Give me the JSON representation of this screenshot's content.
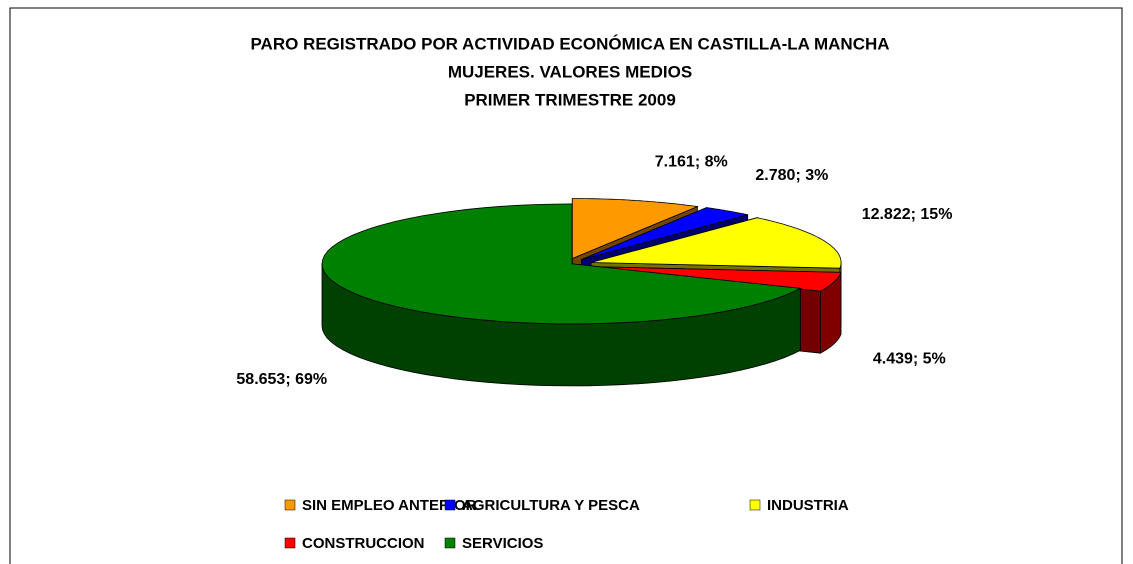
{
  "chart_data": {
    "type": "pie",
    "title": [
      "PARO REGISTRADO POR ACTIVIDAD ECONÓMICA EN CASTILLA-LA MANCHA",
      "MUJERES. VALORES MEDIOS",
      "PRIMER TRIMESTRE 2009"
    ],
    "categories": [
      "SIN EMPLEO ANTERIOR",
      "AGRICULTURA Y PESCA",
      "INDUSTRIA",
      "CONSTRUCCION",
      "SERVICIOS"
    ],
    "values": [
      7161,
      2780,
      12822,
      4439,
      58653
    ],
    "value_labels": [
      "7.161; 8%",
      "2.780; 3%",
      "12.822; 15%",
      "4.439; 5%",
      "58.653; 69%"
    ],
    "colors": [
      "#FF9900",
      "#0000FF",
      "#FFFF00",
      "#FF0000",
      "#008000"
    ],
    "legend": "bottom"
  }
}
